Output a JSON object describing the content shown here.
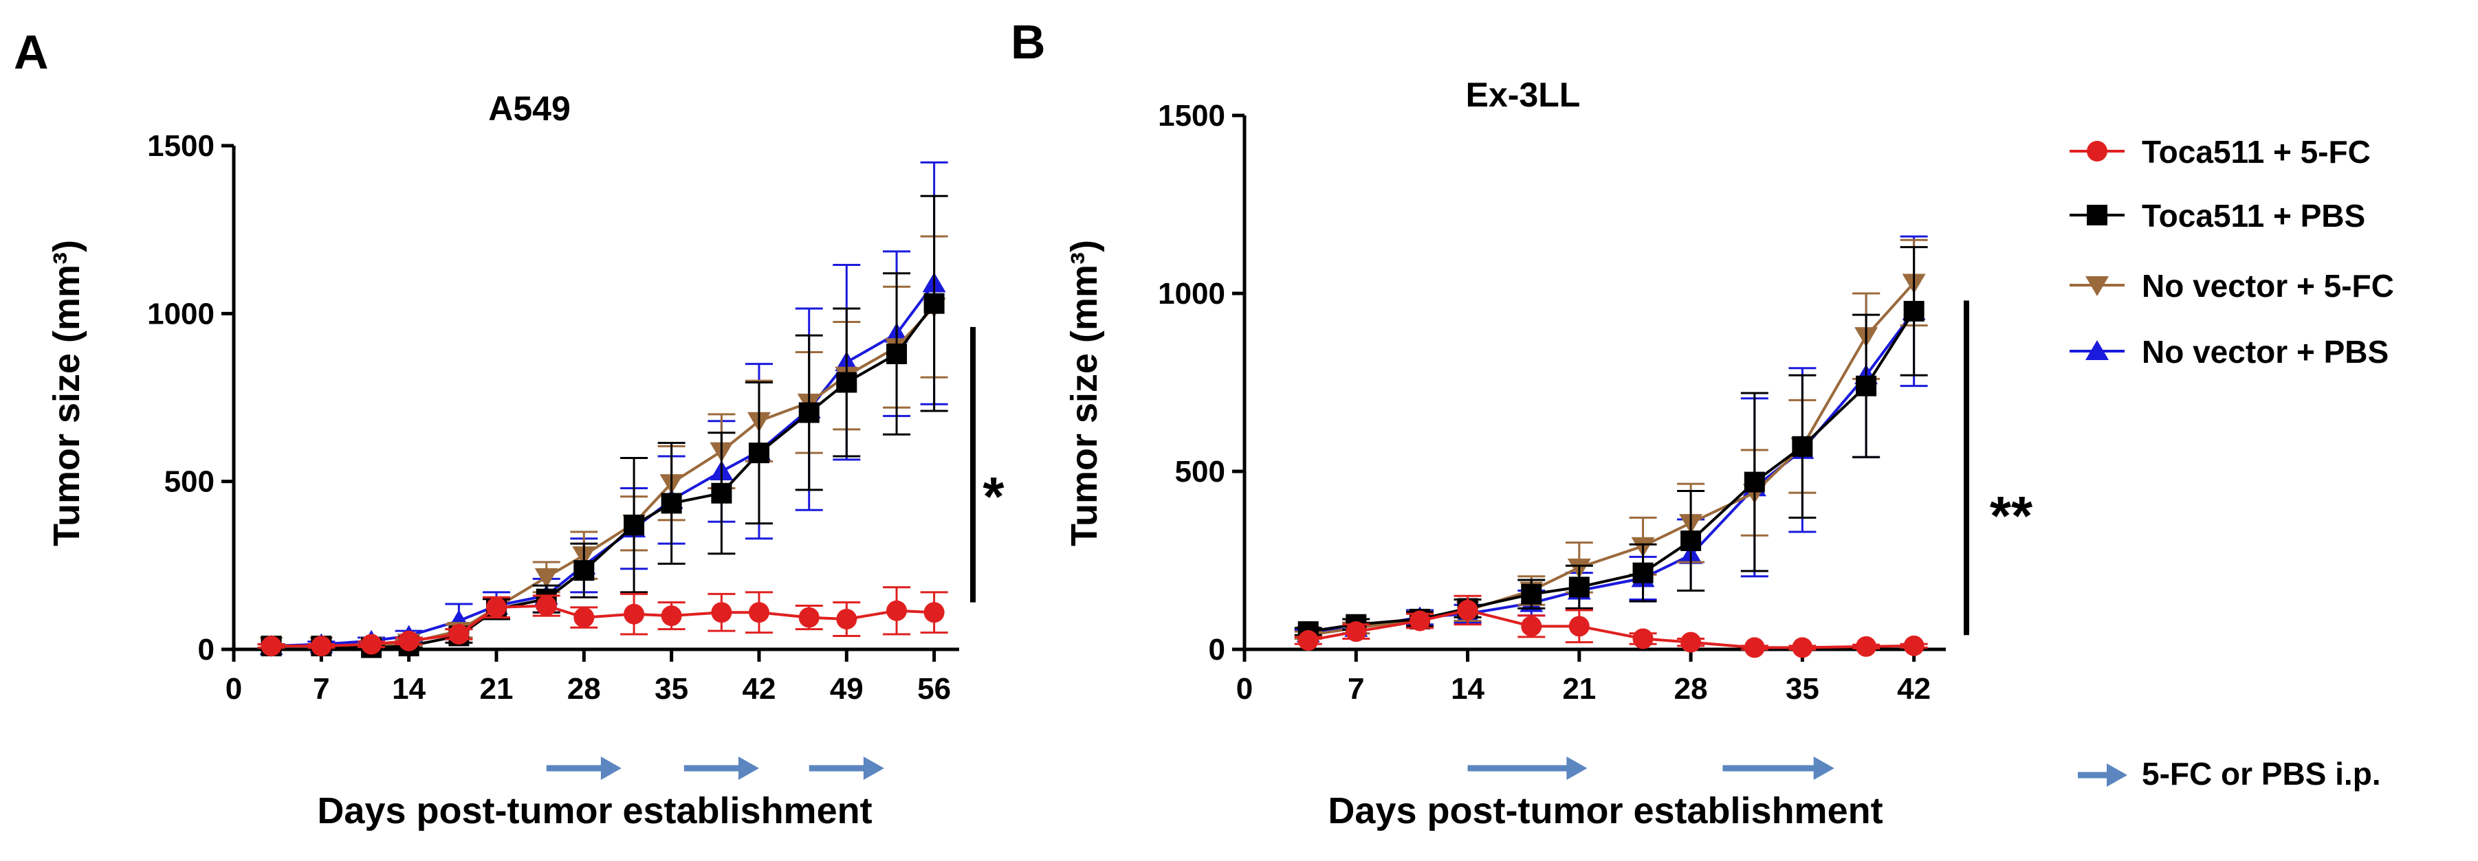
{
  "colors": {
    "toca_5fc": "#e02020",
    "toca_pbs": "#000000",
    "novec_5fc": "#9b6a3c",
    "novec_pbs": "#1a1adc",
    "arrow": "#5b86c0"
  },
  "legend": {
    "items": [
      {
        "key": "toca_5fc",
        "label": "Toca511 + 5-FC",
        "marker": "circle"
      },
      {
        "key": "toca_pbs",
        "label": "Toca511 + PBS",
        "marker": "square"
      },
      {
        "key": "novec_5fc",
        "label": "No vector + 5-FC",
        "marker": "triangle-down"
      },
      {
        "key": "novec_pbs",
        "label": "No vector + PBS",
        "marker": "triangle-up"
      }
    ],
    "arrow_label": "5-FC or PBS i.p."
  },
  "chart_data": [
    {
      "type": "line",
      "panel": "A",
      "title": "A549",
      "xlabel": "Days post-tumor establishment",
      "ylabel": "Tumor size (mm³)",
      "xlim": [
        0,
        58
      ],
      "ylim": [
        0,
        1500
      ],
      "xticks": [
        0,
        7,
        14,
        21,
        28,
        35,
        42,
        49,
        56
      ],
      "yticks": [
        0,
        500,
        1000,
        1500
      ],
      "treatment_windows": [
        [
          25,
          31
        ],
        [
          36,
          42
        ],
        [
          46,
          52
        ]
      ],
      "significance": {
        "label": "*",
        "y_range": [
          140,
          960
        ]
      },
      "series": [
        {
          "key": "toca_5fc",
          "name": "Toca511 + 5-FC",
          "x": [
            3,
            7,
            11,
            14,
            18,
            21,
            25,
            28,
            32,
            35,
            39,
            42,
            46,
            49,
            53,
            56
          ],
          "y": [
            10,
            10,
            15,
            25,
            45,
            125,
            130,
            95,
            105,
            100,
            110,
            110,
            95,
            90,
            115,
            110
          ],
          "err": [
            5,
            5,
            8,
            10,
            15,
            30,
            30,
            30,
            60,
            40,
            55,
            60,
            35,
            50,
            70,
            60
          ]
        },
        {
          "key": "toca_pbs",
          "name": "Toca511 + PBS",
          "x": [
            3,
            7,
            11,
            14,
            18,
            21,
            25,
            28,
            32,
            35,
            39,
            42,
            46,
            49,
            53,
            56
          ],
          "y": [
            10,
            10,
            5,
            10,
            40,
            120,
            150,
            235,
            370,
            435,
            465,
            585,
            705,
            795,
            880,
            1030
          ],
          "err": [
            5,
            5,
            5,
            5,
            20,
            30,
            40,
            80,
            200,
            180,
            180,
            210,
            230,
            220,
            240,
            320
          ]
        },
        {
          "key": "novec_5fc",
          "name": "No vector + 5-FC",
          "x": [
            3,
            7,
            11,
            14,
            18,
            21,
            25,
            28,
            32,
            35,
            39,
            42,
            46,
            49,
            53,
            56
          ],
          "y": [
            10,
            10,
            10,
            20,
            55,
            125,
            215,
            280,
            375,
            495,
            590,
            680,
            735,
            815,
            900,
            1020
          ],
          "err": [
            5,
            5,
            5,
            8,
            20,
            30,
            45,
            70,
            80,
            110,
            110,
            120,
            150,
            160,
            180,
            210
          ]
        },
        {
          "key": "novec_pbs",
          "name": "No vector + PBS",
          "x": [
            3,
            7,
            11,
            14,
            18,
            21,
            25,
            28,
            32,
            35,
            39,
            42,
            46,
            49,
            53,
            56
          ],
          "y": [
            10,
            15,
            25,
            40,
            85,
            130,
            160,
            250,
            360,
            445,
            530,
            590,
            715,
            855,
            940,
            1090
          ],
          "err": [
            5,
            8,
            10,
            15,
            50,
            40,
            50,
            80,
            120,
            130,
            150,
            260,
            300,
            290,
            245,
            360
          ]
        }
      ]
    },
    {
      "type": "line",
      "panel": "B",
      "title": "Ex-3LL",
      "xlabel": "Days post-tumor establishment",
      "ylabel": "Tumor size (mm³)",
      "xlim": [
        0,
        44
      ],
      "ylim": [
        0,
        1500
      ],
      "xticks": [
        0,
        7,
        14,
        21,
        28,
        35,
        42
      ],
      "yticks": [
        0,
        500,
        1000,
        1500
      ],
      "treatment_windows": [
        [
          14,
          21.5
        ],
        [
          30,
          37
        ]
      ],
      "significance": {
        "label": "**",
        "y_range": [
          40,
          980
        ]
      },
      "series": [
        {
          "key": "toca_5fc",
          "name": "Toca511 + 5-FC",
          "x": [
            4,
            7,
            11,
            14,
            18,
            21,
            25,
            28,
            32,
            35,
            39,
            42
          ],
          "y": [
            25,
            50,
            80,
            110,
            65,
            65,
            30,
            20,
            5,
            5,
            8,
            10
          ],
          "err": [
            10,
            20,
            20,
            40,
            30,
            45,
            15,
            10,
            5,
            5,
            5,
            5
          ]
        },
        {
          "key": "toca_pbs",
          "name": "Toca511 + PBS",
          "x": [
            4,
            7,
            11,
            14,
            18,
            21,
            25,
            28,
            32,
            35,
            39,
            42
          ],
          "y": [
            50,
            70,
            85,
            115,
            155,
            175,
            215,
            305,
            470,
            570,
            740,
            950
          ],
          "err": [
            10,
            15,
            20,
            25,
            40,
            60,
            80,
            140,
            250,
            200,
            200,
            180
          ]
        },
        {
          "key": "novec_5fc",
          "name": "No vector + 5-FC",
          "x": [
            4,
            7,
            11,
            14,
            18,
            21,
            25,
            28,
            32,
            35,
            39,
            42
          ],
          "y": [
            40,
            60,
            85,
            110,
            165,
            230,
            290,
            355,
            440,
            570,
            880,
            1030
          ],
          "err": [
            10,
            15,
            20,
            30,
            40,
            70,
            80,
            110,
            120,
            130,
            120,
            120
          ]
        },
        {
          "key": "novec_pbs",
          "name": "No vector + PBS",
          "x": [
            4,
            7,
            11,
            14,
            18,
            21,
            25,
            28,
            32,
            35,
            39,
            42
          ],
          "y": [
            45,
            60,
            90,
            100,
            130,
            165,
            200,
            265,
            455,
            560,
            770,
            950
          ],
          "err": [
            10,
            15,
            20,
            25,
            35,
            50,
            60,
            100,
            250,
            230,
            230,
            210
          ]
        }
      ]
    }
  ]
}
